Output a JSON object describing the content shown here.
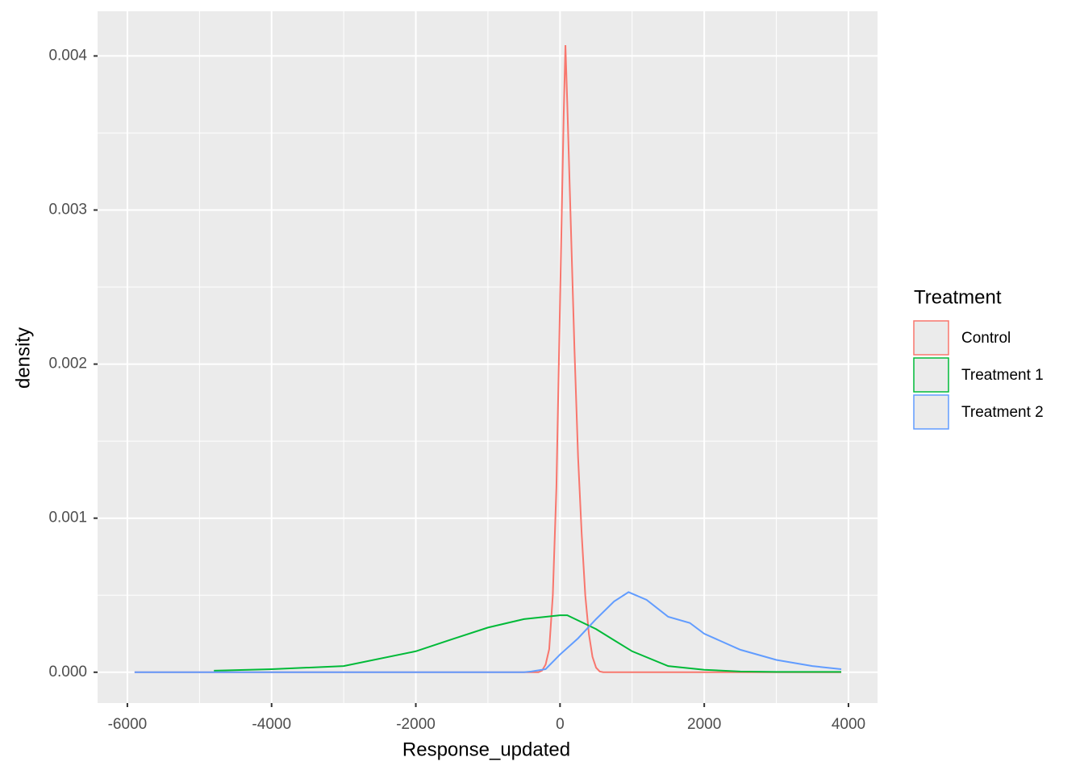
{
  "chart_data": {
    "type": "density",
    "x_label": "Response_updated",
    "y_label": "density",
    "legend_title": "Treatment",
    "legend_position": "right",
    "grid": true,
    "xlim": [
      -6413,
      4403
    ],
    "ylim": [
      -0.0002,
      0.00429
    ],
    "xticks": [
      -6000,
      -4000,
      -2000,
      0,
      2000,
      4000
    ],
    "yticks": [
      {
        "value": 0,
        "label": "0.000"
      },
      {
        "value": 0.001,
        "label": "0.001"
      },
      {
        "value": 0.002,
        "label": "0.002"
      },
      {
        "value": 0.003,
        "label": "0.003"
      },
      {
        "value": 0.004,
        "label": "0.004"
      }
    ],
    "series": [
      {
        "name": "Control",
        "color": "#F8766D",
        "x": [
          -5900,
          -300,
          -250,
          -200,
          -150,
          -100,
          -50,
          0,
          50,
          75,
          100,
          150,
          200,
          250,
          300,
          350,
          400,
          450,
          500,
          550,
          600,
          3900
        ],
        "values": [
          0,
          0,
          1e-05,
          5e-05,
          0.00015,
          0.0005,
          0.0012,
          0.0024,
          0.0036,
          0.00407,
          0.0037,
          0.0029,
          0.0021,
          0.0014,
          0.0009,
          0.0005,
          0.00025,
          0.0001,
          3e-05,
          5e-06,
          0,
          0
        ]
      },
      {
        "name": "Treatment 1",
        "color": "#00BA38",
        "x": [
          -4800,
          -4000,
          -3000,
          -2000,
          -1500,
          -1000,
          -500,
          0,
          100,
          500,
          1000,
          1500,
          2000,
          2500,
          3000,
          3900
        ],
        "values": [
          1e-05,
          2e-05,
          4e-05,
          0.000136,
          0.000214,
          0.00029,
          0.000345,
          0.00037,
          0.00037,
          0.00028,
          0.000136,
          4e-05,
          1.6e-05,
          5e-06,
          2e-06,
          2e-06
        ]
      },
      {
        "name": "Treatment 2",
        "color": "#619CFF",
        "x": [
          -5900,
          -500,
          -400,
          -200,
          0,
          250,
          500,
          750,
          950,
          1200,
          1500,
          1800,
          2000,
          2500,
          3000,
          3500,
          3900
        ],
        "values": [
          0,
          0,
          5e-06,
          2e-05,
          0.000115,
          0.00022,
          0.000345,
          0.00046,
          0.00052,
          0.00047,
          0.00036,
          0.00032,
          0.00025,
          0.000146,
          8e-05,
          4e-05,
          2e-05
        ]
      }
    ]
  }
}
